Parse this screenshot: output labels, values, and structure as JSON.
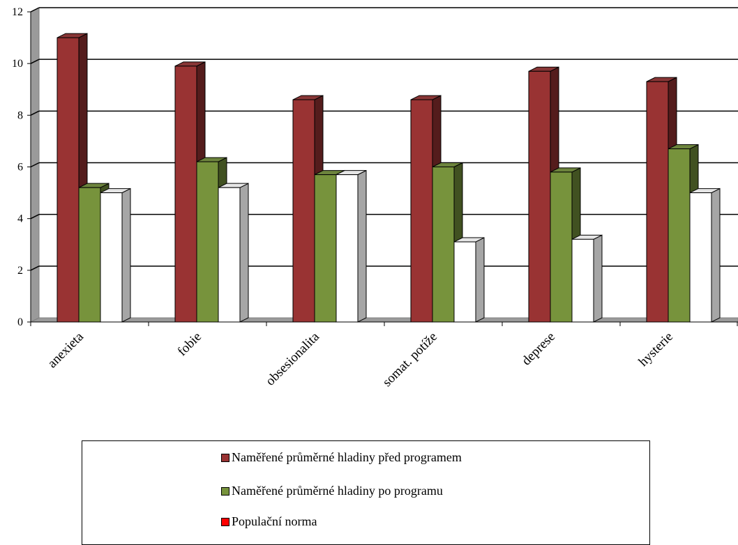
{
  "chart_data": {
    "type": "bar",
    "categories": [
      "anexieta",
      "fobie",
      "obsesionalita",
      "somat. potíže",
      "deprese",
      "hysterie"
    ],
    "series": [
      {
        "name": "Naměřené průměrné hladiny před programem",
        "values": [
          11.0,
          9.9,
          8.6,
          8.6,
          9.7,
          9.3
        ],
        "color": "#993333"
      },
      {
        "name": "Naměřené průměrné hladiny po programu",
        "values": [
          5.2,
          6.2,
          5.7,
          6.0,
          5.8,
          6.7
        ],
        "color": "#77933c"
      },
      {
        "name": "Populační norma",
        "values": [
          5.0,
          5.2,
          5.7,
          3.1,
          3.2,
          5.0
        ],
        "color": "#ffffff"
      }
    ],
    "legend_swatch_colors": [
      "#993333",
      "#77933c",
      "#ff0000"
    ],
    "yticks": [
      "0",
      "2",
      "4",
      "6",
      "8",
      "10",
      "12"
    ],
    "ylim": [
      0,
      12
    ],
    "grid": true,
    "legend_position": "bottom"
  }
}
